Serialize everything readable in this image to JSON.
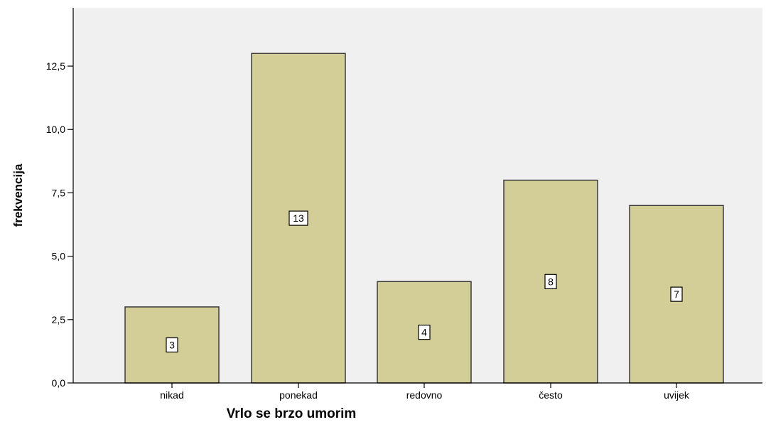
{
  "chart_data": {
    "type": "bar",
    "title": "",
    "xlabel": "Vrlo se brzo umorim",
    "ylabel": "frekvencija",
    "categories": [
      "nikad",
      "ponekad",
      "redovno",
      "često",
      "uvijek"
    ],
    "values": [
      3,
      13,
      4,
      8,
      7
    ],
    "data_labels": [
      "3",
      "13",
      "4",
      "8",
      "7"
    ],
    "ylim": [
      0,
      14.8
    ],
    "yticks": [
      0,
      2.5,
      5,
      7.5,
      10,
      12.5
    ],
    "ytick_labels": [
      "0,0",
      "2,5",
      "5,0",
      "7,5",
      "10,0",
      "12,5"
    ],
    "grid": false,
    "legend": "none",
    "colors": {
      "plot_background": "#f0f0f0",
      "bar_fill": "#d3ce97",
      "bar_stroke": "#3a3a3a",
      "axis": "#000000",
      "label_box_fill": "#ffffff"
    }
  }
}
